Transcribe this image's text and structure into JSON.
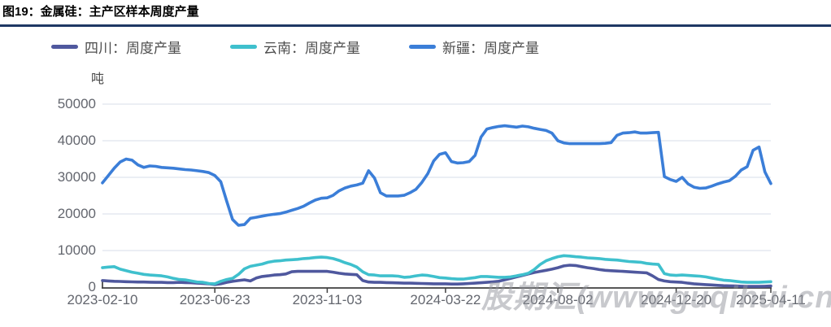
{
  "header": {
    "title": "图19：金属硅：主产区样本周度产量"
  },
  "legend": {
    "items": [
      {
        "label": "四川：周度产量"
      },
      {
        "label": "云南：周度产量"
      },
      {
        "label": "新疆：周度产量"
      }
    ]
  },
  "watermark": {
    "text": "股期汇(www.guqihui.cn)"
  },
  "chart_data": {
    "type": "line",
    "title": "金属硅：主产区样本周度产量",
    "unit": "吨",
    "xlabel": "",
    "ylabel": "吨",
    "x_frequency": "weekly",
    "x_range": [
      "2023-02-10",
      "2025-04-11"
    ],
    "ylim": [
      0,
      50000
    ],
    "y_ticks": [
      0,
      10000,
      20000,
      30000,
      40000,
      50000
    ],
    "grid": true,
    "legend_position": "top",
    "colors": {
      "grid": "#dfe3ee",
      "axis": "#3f3f3f",
      "tick_text": "#63666e",
      "title_rule": "#1f3864"
    },
    "x_ticks": [
      {
        "label": "2023-02-10",
        "week": 0
      },
      {
        "label": "2023-06-23",
        "week": 19
      },
      {
        "label": "2023-11-03",
        "week": 38
      },
      {
        "label": "2024-03-22",
        "week": 58
      },
      {
        "label": "2024-08-02",
        "week": 77
      },
      {
        "label": "2024-12-20",
        "week": 97
      },
      {
        "label": "2025-04-11",
        "week": 113
      }
    ],
    "series": [
      {
        "id": "sichuan",
        "name": "四川：周度产量",
        "color": "#4f589e",
        "values": [
          1800,
          1700,
          1600,
          1550,
          1500,
          1450,
          1400,
          1400,
          1350,
          1300,
          1300,
          1250,
          1250,
          1300,
          1250,
          1200,
          1100,
          1000,
          900,
          700,
          900,
          1300,
          1600,
          1800,
          2000,
          1700,
          2500,
          2900,
          3100,
          3300,
          3400,
          3600,
          4200,
          4300,
          4300,
          4300,
          4300,
          4300,
          4300,
          4100,
          3800,
          3600,
          3500,
          3400,
          1800,
          1400,
          1300,
          1300,
          1250,
          1200,
          1150,
          1100,
          1100,
          1050,
          1000,
          950,
          900,
          900,
          900,
          850,
          850,
          900,
          1000,
          1100,
          1200,
          1300,
          1450,
          1600,
          2000,
          2400,
          2800,
          3200,
          3600,
          4000,
          4300,
          4600,
          4900,
          5300,
          5800,
          6000,
          5900,
          5600,
          5300,
          5100,
          4800,
          4600,
          4500,
          4400,
          4300,
          4200,
          4100,
          4000,
          3900,
          3100,
          2100,
          1700,
          1500,
          1400,
          1300,
          1100,
          900,
          800,
          700,
          600,
          500,
          400,
          350,
          300,
          250,
          200,
          200,
          200,
          250,
          300
        ]
      },
      {
        "id": "yunnan",
        "name": "云南：周度产量",
        "color": "#3fc0cd",
        "values": [
          5300,
          5500,
          5600,
          4900,
          4500,
          4100,
          3800,
          3500,
          3300,
          3200,
          3100,
          2800,
          2400,
          2100,
          2000,
          1700,
          1400,
          1300,
          1000,
          900,
          1600,
          2100,
          2400,
          3500,
          5000,
          5700,
          6000,
          6300,
          6800,
          7100,
          7200,
          7400,
          7500,
          7600,
          7800,
          7900,
          8100,
          8200,
          8100,
          7800,
          7300,
          6700,
          6200,
          5500,
          4200,
          3400,
          3300,
          3100,
          3100,
          3100,
          3000,
          2700,
          2800,
          3100,
          3300,
          3200,
          2900,
          2600,
          2500,
          2300,
          2200,
          2200,
          2400,
          2600,
          2900,
          2900,
          2800,
          2700,
          2700,
          2800,
          3100,
          3400,
          3800,
          4800,
          6200,
          7200,
          7800,
          8300,
          8600,
          8500,
          8300,
          8200,
          8000,
          7900,
          7800,
          7600,
          7500,
          7400,
          7200,
          7000,
          6900,
          6800,
          6500,
          6300,
          6200,
          3700,
          3300,
          3200,
          3300,
          3200,
          3100,
          3000,
          2800,
          2500,
          2200,
          1900,
          1800,
          1600,
          1400,
          1300,
          1300,
          1300,
          1400,
          1500
        ]
      },
      {
        "id": "xinjiang",
        "name": "新疆：周度产量",
        "color": "#3b7ed8",
        "values": [
          28500,
          30500,
          32500,
          34200,
          35000,
          34700,
          33400,
          32700,
          33100,
          33000,
          32700,
          32600,
          32500,
          32300,
          32100,
          32000,
          31800,
          31600,
          31300,
          30500,
          28800,
          23500,
          18500,
          16900,
          17100,
          18800,
          19100,
          19400,
          19700,
          19900,
          20100,
          20500,
          21000,
          21500,
          22100,
          23000,
          23800,
          24300,
          24400,
          25100,
          26300,
          27100,
          27600,
          27900,
          28400,
          31800,
          29800,
          25800,
          24900,
          24900,
          24900,
          25100,
          25800,
          26700,
          28600,
          31000,
          34500,
          36300,
          36700,
          34300,
          33900,
          34000,
          34300,
          36000,
          41000,
          43200,
          43600,
          43900,
          44100,
          43900,
          43700,
          44000,
          43800,
          43400,
          43100,
          42800,
          42100,
          40000,
          39400,
          39200,
          39200,
          39200,
          39200,
          39200,
          39200,
          39300,
          39500,
          41500,
          42100,
          42200,
          42400,
          42100,
          42100,
          42200,
          42300,
          30200,
          29400,
          28900,
          30000,
          28200,
          27300,
          27000,
          27100,
          27600,
          28200,
          28700,
          29100,
          30300,
          32000,
          32900,
          37400,
          38300,
          31500,
          28300
        ]
      }
    ]
  }
}
